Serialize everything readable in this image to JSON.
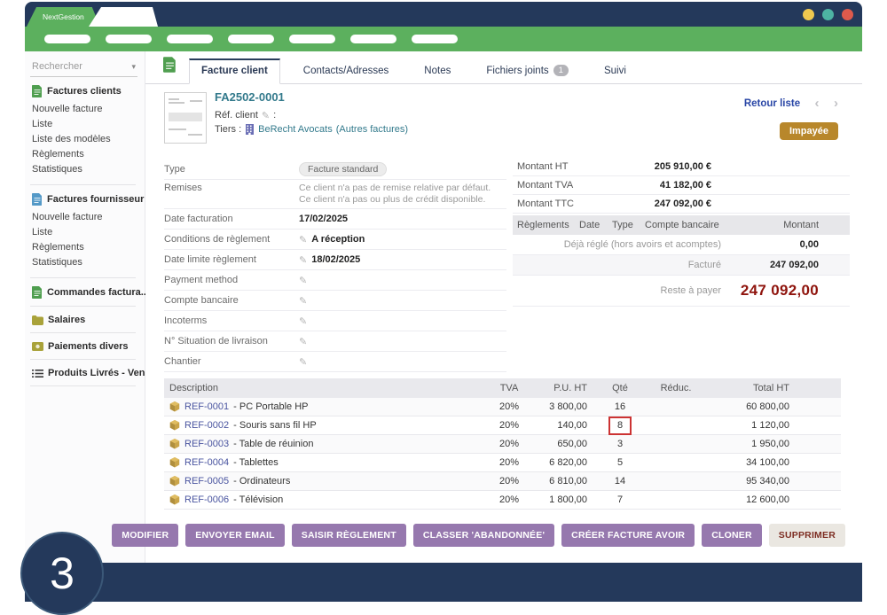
{
  "brand": "NextGestion",
  "window_dots": [
    "#f0c84f",
    "#4db3a3",
    "#dd5a4c"
  ],
  "menubar": {
    "pill_count": 7
  },
  "sidebar": {
    "search": "Rechercher",
    "sections": [
      {
        "icon": "doc-green",
        "label": "Factures clients",
        "items": [
          "Nouvelle facture",
          "Liste",
          "Liste des modèles",
          "Règlements",
          "Statistiques"
        ]
      },
      {
        "icon": "doc-blue",
        "label": "Factures fournisseur",
        "items": [
          "Nouvelle facture",
          "Liste",
          "Règlements",
          "Statistiques"
        ]
      },
      {
        "icon": "doc-green",
        "label": "Commandes factura...",
        "items": []
      },
      {
        "icon": "folder-olive",
        "label": "Salaires",
        "items": []
      },
      {
        "icon": "money-olive",
        "label": "Paiements divers",
        "items": []
      },
      {
        "icon": "list",
        "label": "Produits Livrés - Ven...",
        "items": []
      }
    ]
  },
  "tabs": [
    {
      "label": "Facture client",
      "active": true
    },
    {
      "label": "Contacts/Adresses",
      "active": false
    },
    {
      "label": "Notes",
      "active": false
    },
    {
      "label": "Fichiers joints",
      "badge": "1",
      "active": false
    },
    {
      "label": "Suivi",
      "active": false
    }
  ],
  "header": {
    "ref": "FA2502-0001",
    "ref_client_label": "Réf. client",
    "colon": ":",
    "tiers_label": "Tiers :",
    "tiers_name": "BeRecht Avocats",
    "tiers_suffix": "(Autres factures)",
    "back_link": "Retour liste",
    "status": "Impayée"
  },
  "details": [
    {
      "label": "Type",
      "badge": "Facture standard"
    },
    {
      "label": "Remises",
      "muted_lines": [
        "Ce client n'a pas de remise relative par défaut.",
        "Ce client n'a pas ou plus de crédit disponible."
      ]
    },
    {
      "label": "Date facturation",
      "value": "17/02/2025",
      "pencil": false
    },
    {
      "label": "Conditions de règlement",
      "value": "A réception",
      "pencil": true
    },
    {
      "label": "Date limite règlement",
      "value": "18/02/2025",
      "pencil": true
    },
    {
      "label": "Payment method",
      "value": "",
      "pencil": true
    },
    {
      "label": "Compte bancaire",
      "value": "",
      "pencil": true
    },
    {
      "label": "Incoterms",
      "value": "",
      "pencil": true
    },
    {
      "label": "N° Situation de livraison",
      "value": "",
      "pencil": true
    },
    {
      "label": "Chantier",
      "value": "",
      "pencil": true
    }
  ],
  "summary": {
    "amounts": [
      {
        "label": "Montant HT",
        "value": "205 910,00 €"
      },
      {
        "label": "Montant TVA",
        "value": "41 182,00 €"
      },
      {
        "label": "Montant TTC",
        "value": "247 092,00 €"
      }
    ],
    "payments_headers": [
      "Règlements",
      "Date",
      "Type",
      "Compte bancaire",
      "Montant"
    ],
    "payment_rows": [
      {
        "label": "Déjà réglé (hors avoirs et acomptes)",
        "amount": "0,00",
        "shaded": false,
        "emphasis": false
      },
      {
        "label": "Facturé",
        "amount": "247 092,00",
        "shaded": true,
        "emphasis": false
      },
      {
        "label": "Reste à payer",
        "amount": "247 092,00",
        "shaded": false,
        "emphasis": true
      }
    ]
  },
  "lines": {
    "headers": [
      "Description",
      "TVA",
      "P.U. HT",
      "Qté",
      "Réduc.",
      "Total HT"
    ],
    "separator": " - ",
    "rows": [
      {
        "ref": "REF-0001",
        "name": "PC Portable HP",
        "tva": "20%",
        "pu": "3 800,00",
        "qty": "16",
        "reduc": "",
        "total": "60 800,00",
        "qty_boxed": false
      },
      {
        "ref": "REF-0002",
        "name": "Souris sans fil HP",
        "tva": "20%",
        "pu": "140,00",
        "qty": "8",
        "reduc": "",
        "total": "1 120,00",
        "qty_boxed": true
      },
      {
        "ref": "REF-0003",
        "name": "Table de réuinion",
        "tva": "20%",
        "pu": "650,00",
        "qty": "3",
        "reduc": "",
        "total": "1 950,00",
        "qty_boxed": false
      },
      {
        "ref": "REF-0004",
        "name": "Tablettes",
        "tva": "20%",
        "pu": "6 820,00",
        "qty": "5",
        "reduc": "",
        "total": "34 100,00",
        "qty_boxed": false
      },
      {
        "ref": "REF-0005",
        "name": "Ordinateurs",
        "tva": "20%",
        "pu": "6 810,00",
        "qty": "14",
        "reduc": "",
        "total": "95 340,00",
        "qty_boxed": false
      },
      {
        "ref": "REF-0006",
        "name": "Télévision",
        "tva": "20%",
        "pu": "1 800,00",
        "qty": "7",
        "reduc": "",
        "total": "12 600,00",
        "qty_boxed": false
      }
    ]
  },
  "actions": {
    "buttons": [
      "MODIFIER",
      "ENVOYER EMAIL",
      "SAISIR RÈGLEMENT",
      "CLASSER 'ABANDONNÉE'",
      "CRÉER FACTURE AVOIR",
      "CLONER"
    ],
    "delete_label": "SUPPRIMER"
  },
  "page_badge": "3",
  "colors": {
    "navy": "#24395b",
    "green": "#5cb05e",
    "accent_purple": "#9678ae",
    "status_gold": "#b8872b",
    "danger_red": "#8f140d",
    "annotation_red": "#cc3333"
  }
}
